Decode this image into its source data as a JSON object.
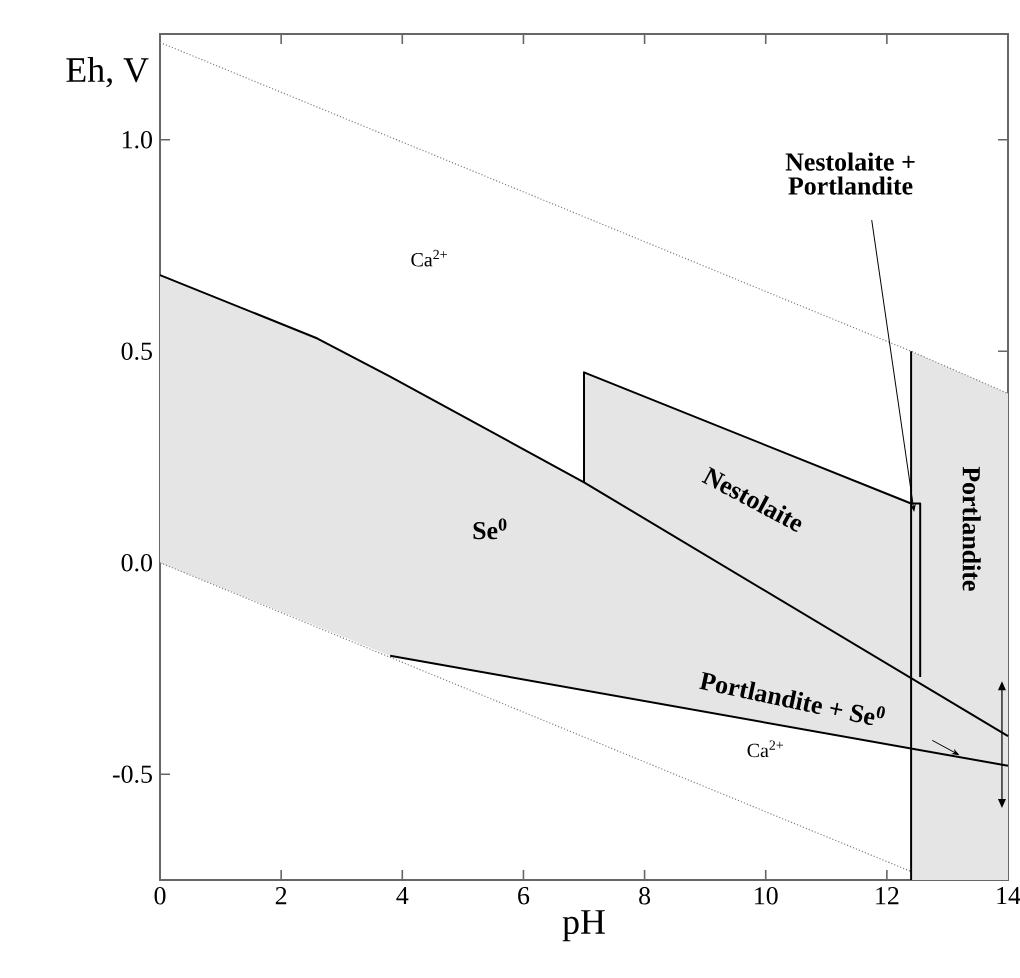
{
  "chart_data": {
    "type": "line",
    "xlabel": "pH",
    "ylabel": "Eh, V",
    "xlim": [
      0,
      14
    ],
    "ylim": [
      -0.75,
      1.25
    ],
    "xticks": [
      0,
      2,
      4,
      6,
      8,
      10,
      12,
      14
    ],
    "yticks": [
      -0.5,
      {
        "value": 0,
        "label": "0.0"
      },
      0.5,
      {
        "value": 1,
        "label": "1.0"
      }
    ],
    "grid": false,
    "series": [
      {
        "color": "#808080",
        "line_style": "dotted",
        "x": [
          0,
          12.4,
          14
        ],
        "values": [
          1.23,
          0.5,
          0.4
        ],
        "upper": [
          null,
          0.5,
          0.4
        ],
        "lower": [
          null,
          -0.75,
          -0.75
        ]
      },
      {
        "color": "#808080",
        "line_style": "dotted",
        "x": [
          0,
          12.4
        ],
        "values": [
          0,
          -0.73
        ]
      },
      {
        "color": "#000000",
        "line_style": "solid",
        "x": [
          0,
          2.6,
          3.8,
          7,
          14
        ],
        "values": [
          0.68,
          0.53,
          0.44,
          0.19,
          -0.41
        ],
        "upper": [
          0.68,
          0.53,
          0.44,
          0.19,
          -0.41
        ],
        "lower": [
          0,
          -0.15,
          -0.22,
          -0.3,
          -0.48
        ]
      },
      {
        "color": "#000000",
        "line_style": "solid",
        "x": [
          3.8,
          14
        ],
        "values": [
          -0.22,
          -0.48
        ]
      },
      {
        "color": "#000000",
        "line_style": "solid",
        "x": [
          7,
          7,
          12.4,
          12.55,
          12.55
        ],
        "values": [
          0.19,
          0.45,
          0.14,
          0.14,
          -0.27
        ],
        "upper": [
          0.19,
          0.45,
          0.14,
          0.14,
          -0.27
        ],
        "lower": [
          0.19,
          0.19,
          -0.27,
          -0.27,
          -0.27
        ]
      },
      {
        "color": "#000000",
        "line_style": "solid",
        "x": [
          12.4,
          12.4
        ],
        "values": [
          -0.75,
          0.5
        ]
      }
    ],
    "annotations": [
      "Ca$^{2+}$",
      "Ca$^{2+}$",
      "Se$^{0}$",
      "Nestolaite",
      {
        "text": "Nestolaite + Portlandite",
        "x": 12.45,
        "y": 0.12
      },
      "Portlandite",
      "Portlandite + Se$^{0}$"
    ]
  }
}
